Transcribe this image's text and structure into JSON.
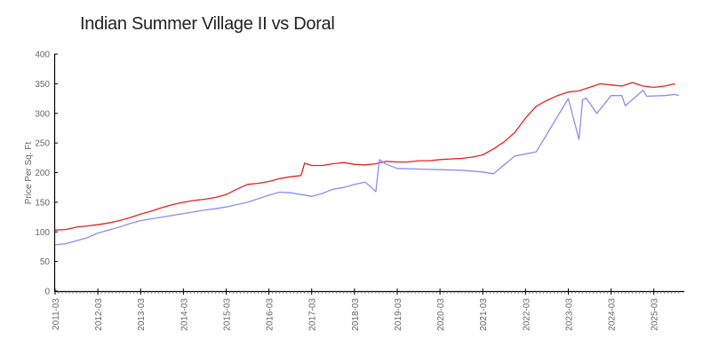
{
  "chart_data": {
    "type": "line",
    "title": "Indian Summer Village II vs Doral",
    "xlabel": "",
    "ylabel": "Price Per Sq. Ft",
    "ylim": [
      0,
      400
    ],
    "yticks": [
      0,
      50,
      100,
      150,
      200,
      250,
      300,
      350,
      400
    ],
    "xticks": [
      "2011-03",
      "2012-03",
      "2013-03",
      "2014-03",
      "2015-03",
      "2016-03",
      "2017-03",
      "2018-03",
      "2019-03",
      "2020-03",
      "2021-03",
      "2022-03",
      "2023-03",
      "2024-03",
      "2025-03"
    ],
    "grid": false,
    "legend": null,
    "series": [
      {
        "name": "Doral",
        "color": "#e82020",
        "points": [
          [
            "2011-03",
            103
          ],
          [
            "2011-06",
            104
          ],
          [
            "2011-09",
            108
          ],
          [
            "2011-12",
            110
          ],
          [
            "2012-03",
            112
          ],
          [
            "2012-06",
            115
          ],
          [
            "2012-09",
            119
          ],
          [
            "2012-12",
            124
          ],
          [
            "2013-03",
            130
          ],
          [
            "2013-06",
            135
          ],
          [
            "2013-09",
            141
          ],
          [
            "2013-12",
            146
          ],
          [
            "2014-03",
            150
          ],
          [
            "2014-06",
            153
          ],
          [
            "2014-09",
            155
          ],
          [
            "2014-12",
            158
          ],
          [
            "2015-03",
            163
          ],
          [
            "2015-06",
            172
          ],
          [
            "2015-09",
            180
          ],
          [
            "2015-12",
            182
          ],
          [
            "2016-03",
            185
          ],
          [
            "2016-06",
            190
          ],
          [
            "2016-09",
            193
          ],
          [
            "2016-12",
            195
          ],
          [
            "2017-01",
            216
          ],
          [
            "2017-03",
            212
          ],
          [
            "2017-06",
            212
          ],
          [
            "2017-09",
            215
          ],
          [
            "2017-12",
            217
          ],
          [
            "2018-03",
            214
          ],
          [
            "2018-06",
            213
          ],
          [
            "2018-09",
            215
          ],
          [
            "2018-12",
            219
          ],
          [
            "2019-03",
            218
          ],
          [
            "2019-06",
            218
          ],
          [
            "2019-09",
            220
          ],
          [
            "2019-12",
            220
          ],
          [
            "2020-03",
            222
          ],
          [
            "2020-06",
            223
          ],
          [
            "2020-09",
            224
          ],
          [
            "2020-12",
            226
          ],
          [
            "2021-03",
            230
          ],
          [
            "2021-06",
            240
          ],
          [
            "2021-09",
            252
          ],
          [
            "2021-12",
            268
          ],
          [
            "2022-03",
            292
          ],
          [
            "2022-06",
            312
          ],
          [
            "2022-09",
            322
          ],
          [
            "2022-12",
            330
          ],
          [
            "2023-03",
            336
          ],
          [
            "2023-06",
            338
          ],
          [
            "2023-09",
            344
          ],
          [
            "2023-12",
            350
          ],
          [
            "2024-03",
            348
          ],
          [
            "2024-06",
            346
          ],
          [
            "2024-09",
            352
          ],
          [
            "2024-12",
            346
          ],
          [
            "2025-03",
            344
          ],
          [
            "2025-06",
            346
          ],
          [
            "2025-09",
            350
          ]
        ]
      },
      {
        "name": "Indian Summer Village II",
        "color": "#8c8cf0",
        "points": [
          [
            "2011-03",
            78
          ],
          [
            "2011-06",
            80
          ],
          [
            "2011-09",
            85
          ],
          [
            "2011-12",
            90
          ],
          [
            "2012-03",
            98
          ],
          [
            "2012-06",
            103
          ],
          [
            "2012-09",
            108
          ],
          [
            "2012-12",
            114
          ],
          [
            "2013-03",
            119
          ],
          [
            "2013-06",
            122
          ],
          [
            "2013-09",
            125
          ],
          [
            "2013-12",
            128
          ],
          [
            "2014-03",
            131
          ],
          [
            "2014-06",
            134
          ],
          [
            "2014-09",
            137
          ],
          [
            "2014-12",
            139
          ],
          [
            "2015-03",
            142
          ],
          [
            "2015-06",
            146
          ],
          [
            "2015-09",
            150
          ],
          [
            "2015-12",
            156
          ],
          [
            "2016-03",
            162
          ],
          [
            "2016-06",
            167
          ],
          [
            "2016-09",
            166
          ],
          [
            "2016-12",
            163
          ],
          [
            "2017-03",
            160
          ],
          [
            "2017-06",
            165
          ],
          [
            "2017-09",
            172
          ],
          [
            "2017-12",
            175
          ],
          [
            "2018-03",
            180
          ],
          [
            "2018-06",
            184
          ],
          [
            "2018-09",
            168
          ],
          [
            "2018-10",
            222
          ],
          [
            "2018-12",
            214
          ],
          [
            "2019-03",
            207
          ],
          [
            "2019-09",
            206
          ],
          [
            "2020-03",
            205
          ],
          [
            "2020-09",
            204
          ],
          [
            "2021-03",
            201
          ],
          [
            "2021-06",
            198
          ],
          [
            "2021-12",
            228
          ],
          [
            "2022-06",
            235
          ],
          [
            "2023-03",
            325
          ],
          [
            "2023-06",
            256
          ],
          [
            "2023-07",
            323
          ],
          [
            "2023-08",
            326
          ],
          [
            "2023-11",
            300
          ],
          [
            "2024-03",
            330
          ],
          [
            "2024-06",
            330
          ],
          [
            "2024-07",
            313
          ],
          [
            "2024-12",
            339
          ],
          [
            "2025-01",
            329
          ],
          [
            "2025-06",
            330
          ],
          [
            "2025-09",
            332
          ],
          [
            "2025-10",
            330
          ]
        ]
      }
    ]
  }
}
